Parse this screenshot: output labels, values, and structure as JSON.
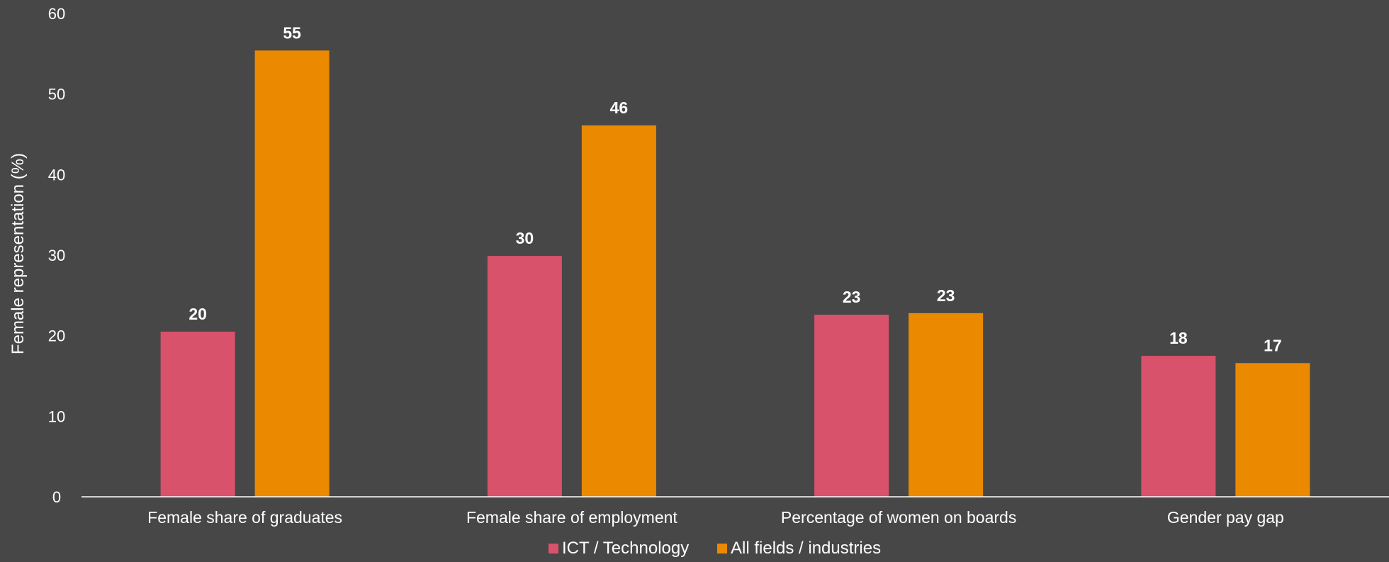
{
  "chart_data": {
    "type": "bar",
    "title": "",
    "xlabel": "",
    "ylabel": "Female representation (%)",
    "ylim": [
      0,
      60
    ],
    "yticks": [
      0,
      10,
      20,
      30,
      40,
      50,
      60
    ],
    "grid": false,
    "legend_position": "bottom",
    "categories": [
      "Female share of graduates",
      "Female share of employment",
      "Percentage of women on boards",
      "Gender pay gap"
    ],
    "series": [
      {
        "name": "ICT / Technology",
        "color": "#d9526b",
        "values": [
          20.5,
          29.9,
          22.6,
          17.5
        ],
        "labels": [
          "20",
          "30",
          "23",
          "18"
        ]
      },
      {
        "name": "All fields / industries",
        "color": "#eb8a00",
        "values": [
          55.4,
          46.1,
          22.8,
          16.6
        ],
        "labels": [
          "55",
          "46",
          "23",
          "17"
        ]
      }
    ]
  }
}
